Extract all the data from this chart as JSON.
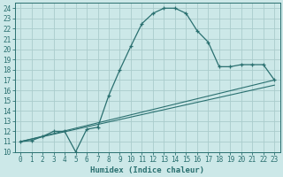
{
  "xlabel": "Humidex (Indice chaleur)",
  "bg_color": "#cce8e8",
  "grid_color": "#aacccc",
  "line_color": "#2a7070",
  "xlim": [
    -0.5,
    23.5
  ],
  "ylim": [
    10,
    24.5
  ],
  "xticks": [
    0,
    1,
    2,
    3,
    4,
    5,
    6,
    7,
    8,
    9,
    10,
    11,
    12,
    13,
    14,
    15,
    16,
    17,
    18,
    19,
    20,
    21,
    22,
    23
  ],
  "yticks": [
    10,
    11,
    12,
    13,
    14,
    15,
    16,
    17,
    18,
    19,
    20,
    21,
    22,
    23,
    24
  ],
  "curve1_x": [
    0,
    1,
    2,
    3,
    4,
    5,
    6,
    7,
    8,
    9,
    10,
    11,
    12,
    13,
    14,
    15,
    16,
    17,
    18,
    19,
    20,
    21,
    22,
    23
  ],
  "curve1_y": [
    11,
    11.1,
    11.5,
    12.0,
    12.0,
    10.0,
    12.2,
    12.4,
    15.5,
    18.0,
    20.3,
    22.5,
    23.5,
    24.0,
    24.0,
    23.5,
    21.8,
    20.7,
    18.3,
    18.3,
    18.5,
    18.5,
    18.5,
    17.0
  ],
  "curve2_x": [
    0,
    23
  ],
  "curve2_y": [
    11,
    16.5
  ],
  "curve3_x": [
    0,
    23
  ],
  "curve3_y": [
    11,
    17.0
  ],
  "axis_fontsize": 6.5,
  "tick_fontsize": 5.5
}
